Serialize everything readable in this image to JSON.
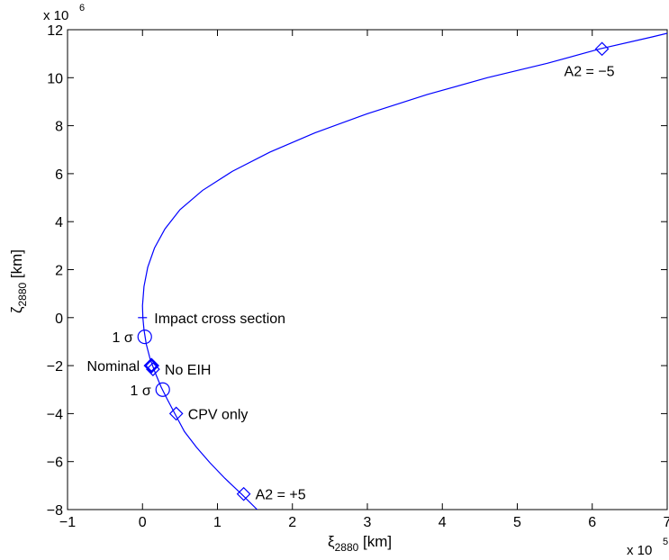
{
  "chart_data": {
    "type": "line",
    "xlabel": "ξ",
    "xlabel_sub": "2880",
    "xlabel_unit": " [km]",
    "ylabel": "ζ",
    "ylabel_sub": "2880",
    "ylabel_unit": " [km]",
    "xlim": [
      -1,
      7
    ],
    "ylim": [
      -8,
      12
    ],
    "x_ticks": [
      -1,
      0,
      1,
      2,
      3,
      4,
      5,
      6,
      7
    ],
    "y_ticks": [
      -8,
      -6,
      -4,
      -2,
      0,
      2,
      4,
      6,
      8,
      10,
      12
    ],
    "x_tick_labels": [
      "−1",
      "0",
      "1",
      "2",
      "3",
      "4",
      "5",
      "6",
      "7"
    ],
    "y_tick_labels": [
      "−8",
      "−6",
      "−4",
      "−2",
      "0",
      "2",
      "4",
      "6",
      "8",
      "10",
      "12"
    ],
    "x_multiplier": "x 10",
    "x_multiplier_exp": "5",
    "y_multiplier": "x 10",
    "y_multiplier_exp": "6",
    "grid": false,
    "line_color": "#0000ff",
    "series": [
      {
        "x": [
          1.53,
          1.32,
          1.1,
          0.9,
          0.72,
          0.56,
          0.44,
          0.33,
          0.25,
          0.17,
          0.1,
          0.05,
          0.02,
          0.005,
          0.0,
          0.02,
          0.07,
          0.16,
          0.3,
          0.5,
          0.8,
          1.2,
          1.7,
          2.3,
          3.0,
          3.8,
          4.6,
          5.4,
          6.1,
          6.8,
          7.0
        ],
        "y": [
          -8.0,
          -7.35,
          -6.7,
          -6.05,
          -5.4,
          -4.75,
          -4.05,
          -3.4,
          -2.9,
          -2.3,
          -1.7,
          -1.1,
          -0.5,
          0.0,
          0.5,
          1.3,
          2.1,
          2.9,
          3.7,
          4.5,
          5.3,
          6.1,
          6.9,
          7.7,
          8.5,
          9.3,
          10.0,
          10.6,
          11.2,
          11.7,
          11.85
        ]
      }
    ],
    "markers": [
      {
        "kind": "diamond",
        "x": 6.13,
        "y": 11.2,
        "label": "A2 = −5",
        "label_pos": "below-left"
      },
      {
        "kind": "plus",
        "x": 0.0,
        "y": 0.0,
        "label": "Impact cross section",
        "label_pos": "right"
      },
      {
        "kind": "circle",
        "x": 0.03,
        "y": -0.8,
        "label": "1 σ",
        "label_pos": "left"
      },
      {
        "kind": "diamond-bold",
        "x": 0.12,
        "y": -2.0,
        "label": "Nominal",
        "label_pos": "left"
      },
      {
        "kind": "diamond",
        "x": 0.14,
        "y": -2.15,
        "label": "No EIH",
        "label_pos": "right"
      },
      {
        "kind": "circle",
        "x": 0.27,
        "y": -3.0,
        "label": "1 σ",
        "label_pos": "left"
      },
      {
        "kind": "diamond",
        "x": 0.45,
        "y": -4.0,
        "label": "CPV only",
        "label_pos": "right"
      },
      {
        "kind": "diamond",
        "x": 1.35,
        "y": -7.35,
        "label": "A2 = +5",
        "label_pos": "right"
      }
    ]
  }
}
